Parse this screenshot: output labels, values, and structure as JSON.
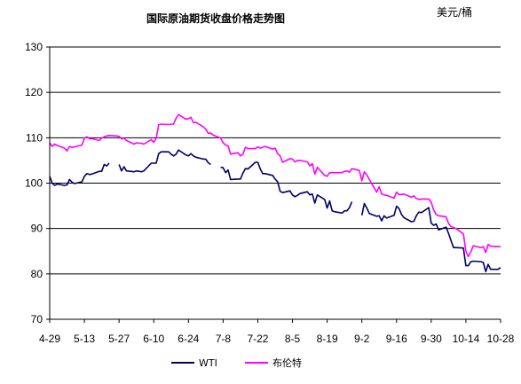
{
  "chart_data": {
    "type": "line",
    "title": "国际原油期货收盘价格走势图",
    "unit": "美元/桶",
    "xlabel": "",
    "ylabel": "",
    "ylim": [
      70,
      130
    ],
    "yticks": [
      70,
      80,
      90,
      100,
      110,
      120,
      130
    ],
    "xticks": [
      "4-29",
      "5-13",
      "5-27",
      "6-10",
      "6-24",
      "7-8",
      "7-22",
      "8-5",
      "8-19",
      "9-2",
      "9-16",
      "9-30",
      "10-14",
      "10-28"
    ],
    "grid": "horizontal",
    "legend": "bottom",
    "series": [
      {
        "name": "WTI",
        "color": "#000066",
        "points": [
          {
            "x": "4-29",
            "y": 101.5
          },
          {
            "x": "4-30",
            "y": 100.0
          },
          {
            "x": "5-1",
            "y": 99.5
          },
          {
            "x": "5-2",
            "y": 99.8
          },
          {
            "x": "5-5",
            "y": 99.5
          },
          {
            "x": "5-6",
            "y": 99.6
          },
          {
            "x": "5-7",
            "y": 100.8
          },
          {
            "x": "5-8",
            "y": 100.2
          },
          {
            "x": "5-9",
            "y": 99.9
          },
          {
            "x": "5-12",
            "y": 100.3
          },
          {
            "x": "5-13",
            "y": 101.5
          },
          {
            "x": "5-14",
            "y": 102.1
          },
          {
            "x": "5-15",
            "y": 101.9
          },
          {
            "x": "5-16",
            "y": 102.0
          },
          {
            "x": "5-19",
            "y": 102.6
          },
          {
            "x": "5-20",
            "y": 102.6
          },
          {
            "x": "5-21",
            "y": 104.1
          },
          {
            "x": "5-22",
            "y": 103.8
          },
          {
            "x": "5-23",
            "y": 104.4
          },
          {
            "x": "5-26",
            "y": null
          },
          {
            "x": "5-27",
            "y": 104.1
          },
          {
            "x": "5-28",
            "y": 102.7
          },
          {
            "x": "5-29",
            "y": 103.6
          },
          {
            "x": "5-30",
            "y": 102.7
          },
          {
            "x": "6-2",
            "y": 102.5
          },
          {
            "x": "6-3",
            "y": 102.7
          },
          {
            "x": "6-4",
            "y": 102.6
          },
          {
            "x": "6-5",
            "y": 102.5
          },
          {
            "x": "6-6",
            "y": 102.7
          },
          {
            "x": "6-9",
            "y": 104.4
          },
          {
            "x": "6-10",
            "y": 104.4
          },
          {
            "x": "6-11",
            "y": 104.4
          },
          {
            "x": "6-12",
            "y": 106.5
          },
          {
            "x": "6-13",
            "y": 106.9
          },
          {
            "x": "6-16",
            "y": 106.9
          },
          {
            "x": "6-17",
            "y": 106.4
          },
          {
            "x": "6-18",
            "y": 106.0
          },
          {
            "x": "6-19",
            "y": 106.4
          },
          {
            "x": "6-20",
            "y": 107.3
          },
          {
            "x": "6-23",
            "y": 106.2
          },
          {
            "x": "6-24",
            "y": 106.0
          },
          {
            "x": "6-25",
            "y": 106.5
          },
          {
            "x": "6-26",
            "y": 106.0
          },
          {
            "x": "6-27",
            "y": 105.7
          },
          {
            "x": "6-30",
            "y": 105.3
          },
          {
            "x": "7-1",
            "y": 105.3
          },
          {
            "x": "7-2",
            "y": 104.5
          },
          {
            "x": "7-3",
            "y": 104.1
          },
          {
            "x": "7-4",
            "y": null
          },
          {
            "x": "7-7",
            "y": 103.5
          },
          {
            "x": "7-8",
            "y": 103.4
          },
          {
            "x": "7-9",
            "y": 102.3
          },
          {
            "x": "7-10",
            "y": 102.9
          },
          {
            "x": "7-11",
            "y": 100.8
          },
          {
            "x": "7-14",
            "y": 100.9
          },
          {
            "x": "7-15",
            "y": 100.9
          },
          {
            "x": "7-16",
            "y": 102.2
          },
          {
            "x": "7-17",
            "y": 103.2
          },
          {
            "x": "7-18",
            "y": 103.1
          },
          {
            "x": "7-21",
            "y": 104.6
          },
          {
            "x": "7-22",
            "y": 104.6
          },
          {
            "x": "7-23",
            "y": 103.1
          },
          {
            "x": "7-24",
            "y": 102.1
          },
          {
            "x": "7-25",
            "y": 102.1
          },
          {
            "x": "7-28",
            "y": 101.7
          },
          {
            "x": "7-29",
            "y": 100.9
          },
          {
            "x": "7-30",
            "y": 100.3
          },
          {
            "x": "7-31",
            "y": 98.2
          },
          {
            "x": "8-1",
            "y": 97.9
          },
          {
            "x": "8-4",
            "y": 98.3
          },
          {
            "x": "8-5",
            "y": 97.4
          },
          {
            "x": "8-6",
            "y": 97.0
          },
          {
            "x": "8-7",
            "y": 97.3
          },
          {
            "x": "8-8",
            "y": 97.7
          },
          {
            "x": "8-11",
            "y": 98.1
          },
          {
            "x": "8-12",
            "y": 97.4
          },
          {
            "x": "8-13",
            "y": 97.6
          },
          {
            "x": "8-14",
            "y": 95.6
          },
          {
            "x": "8-15",
            "y": 97.4
          },
          {
            "x": "8-18",
            "y": 96.4
          },
          {
            "x": "8-19",
            "y": 94.5
          },
          {
            "x": "8-20",
            "y": 96.1
          },
          {
            "x": "8-21",
            "y": 93.9
          },
          {
            "x": "8-22",
            "y": 93.7
          },
          {
            "x": "8-25",
            "y": 93.4
          },
          {
            "x": "8-26",
            "y": 93.9
          },
          {
            "x": "8-27",
            "y": 93.9
          },
          {
            "x": "8-28",
            "y": 94.6
          },
          {
            "x": "8-29",
            "y": 95.9
          },
          {
            "x": "9-1",
            "y": null
          },
          {
            "x": "9-2",
            "y": 92.9
          },
          {
            "x": "9-3",
            "y": 95.5
          },
          {
            "x": "9-4",
            "y": 94.5
          },
          {
            "x": "9-5",
            "y": 93.3
          },
          {
            "x": "9-8",
            "y": 92.7
          },
          {
            "x": "9-9",
            "y": 92.8
          },
          {
            "x": "9-10",
            "y": 91.7
          },
          {
            "x": "9-11",
            "y": 92.8
          },
          {
            "x": "9-12",
            "y": 92.3
          },
          {
            "x": "9-15",
            "y": 92.9
          },
          {
            "x": "9-16",
            "y": 94.9
          },
          {
            "x": "9-17",
            "y": 94.4
          },
          {
            "x": "9-18",
            "y": 93.1
          },
          {
            "x": "9-19",
            "y": 92.4
          },
          {
            "x": "9-22",
            "y": 91.5
          },
          {
            "x": "9-23",
            "y": 91.6
          },
          {
            "x": "9-24",
            "y": 92.8
          },
          {
            "x": "9-25",
            "y": 93.6
          },
          {
            "x": "9-26",
            "y": 93.5
          },
          {
            "x": "9-29",
            "y": 94.6
          },
          {
            "x": "9-30",
            "y": 91.2
          },
          {
            "x": "10-1",
            "y": 90.7
          },
          {
            "x": "10-2",
            "y": 91.0
          },
          {
            "x": "10-3",
            "y": 89.7
          },
          {
            "x": "10-6",
            "y": 90.3
          },
          {
            "x": "10-7",
            "y": 88.9
          },
          {
            "x": "10-8",
            "y": 87.3
          },
          {
            "x": "10-9",
            "y": 85.8
          },
          {
            "x": "10-10",
            "y": 85.8
          },
          {
            "x": "10-13",
            "y": 85.7
          },
          {
            "x": "10-14",
            "y": 81.8
          },
          {
            "x": "10-15",
            "y": 81.8
          },
          {
            "x": "10-16",
            "y": 82.7
          },
          {
            "x": "10-17",
            "y": 82.8
          },
          {
            "x": "10-20",
            "y": 82.7
          },
          {
            "x": "10-21",
            "y": 82.5
          },
          {
            "x": "10-22",
            "y": 80.5
          },
          {
            "x": "10-23",
            "y": 82.1
          },
          {
            "x": "10-24",
            "y": 81.0
          },
          {
            "x": "10-27",
            "y": 81.0
          },
          {
            "x": "10-28",
            "y": 81.4
          }
        ]
      },
      {
        "name": "布伦特",
        "color": "#ff00ff",
        "points": [
          {
            "x": "4-29",
            "y": 108.9
          },
          {
            "x": "4-30",
            "y": 108.1
          },
          {
            "x": "5-1",
            "y": 108.6
          },
          {
            "x": "5-2",
            "y": 108.3
          },
          {
            "x": "5-5",
            "y": 107.7
          },
          {
            "x": "5-6",
            "y": 107.1
          },
          {
            "x": "5-7",
            "y": 108.1
          },
          {
            "x": "5-8",
            "y": 107.9
          },
          {
            "x": "5-9",
            "y": 108.0
          },
          {
            "x": "5-12",
            "y": 108.4
          },
          {
            "x": "5-13",
            "y": 109.9
          },
          {
            "x": "5-14",
            "y": 110.2
          },
          {
            "x": "5-15",
            "y": 109.8
          },
          {
            "x": "5-16",
            "y": 109.8
          },
          {
            "x": "5-19",
            "y": 109.4
          },
          {
            "x": "5-20",
            "y": 109.9
          },
          {
            "x": "5-21",
            "y": 110.2
          },
          {
            "x": "5-22",
            "y": 110.4
          },
          {
            "x": "5-23",
            "y": 110.5
          },
          {
            "x": "5-26",
            "y": 110.4
          },
          {
            "x": "5-27",
            "y": 110.3
          },
          {
            "x": "5-28",
            "y": 109.8
          },
          {
            "x": "5-29",
            "y": 109.9
          },
          {
            "x": "5-30",
            "y": 109.4
          },
          {
            "x": "6-2",
            "y": 108.6
          },
          {
            "x": "6-3",
            "y": 108.9
          },
          {
            "x": "6-4",
            "y": 108.8
          },
          {
            "x": "6-5",
            "y": 108.8
          },
          {
            "x": "6-6",
            "y": 108.6
          },
          {
            "x": "6-9",
            "y": 109.6
          },
          {
            "x": "6-10",
            "y": 109.0
          },
          {
            "x": "6-11",
            "y": 109.9
          },
          {
            "x": "6-12",
            "y": 112.9
          },
          {
            "x": "6-13",
            "y": 113.0
          },
          {
            "x": "6-16",
            "y": 112.9
          },
          {
            "x": "6-17",
            "y": 113.0
          },
          {
            "x": "6-18",
            "y": 113.0
          },
          {
            "x": "6-19",
            "y": 114.3
          },
          {
            "x": "6-20",
            "y": 115.1
          },
          {
            "x": "6-23",
            "y": 114.1
          },
          {
            "x": "6-24",
            "y": 114.2
          },
          {
            "x": "6-25",
            "y": 114.5
          },
          {
            "x": "6-26",
            "y": 113.3
          },
          {
            "x": "6-27",
            "y": 113.4
          },
          {
            "x": "6-30",
            "y": 112.4
          },
          {
            "x": "7-1",
            "y": 111.9
          },
          {
            "x": "7-2",
            "y": 111.0
          },
          {
            "x": "7-3",
            "y": 111.0
          },
          {
            "x": "7-4",
            "y": 110.6
          },
          {
            "x": "7-7",
            "y": 109.9
          },
          {
            "x": "7-8",
            "y": 108.9
          },
          {
            "x": "7-9",
            "y": 108.4
          },
          {
            "x": "7-10",
            "y": 108.2
          },
          {
            "x": "7-11",
            "y": 106.4
          },
          {
            "x": "7-14",
            "y": 106.7
          },
          {
            "x": "7-15",
            "y": 106.0
          },
          {
            "x": "7-16",
            "y": 106.4
          },
          {
            "x": "7-17",
            "y": 107.9
          },
          {
            "x": "7-18",
            "y": 107.6
          },
          {
            "x": "7-21",
            "y": 107.6
          },
          {
            "x": "7-22",
            "y": 108.0
          },
          {
            "x": "7-23",
            "y": 107.7
          },
          {
            "x": "7-24",
            "y": 107.9
          },
          {
            "x": "7-25",
            "y": 108.1
          },
          {
            "x": "7-28",
            "y": 107.5
          },
          {
            "x": "7-29",
            "y": 107.7
          },
          {
            "x": "7-30",
            "y": 106.5
          },
          {
            "x": "7-31",
            "y": 106.0
          },
          {
            "x": "8-1",
            "y": 104.6
          },
          {
            "x": "8-4",
            "y": 105.4
          },
          {
            "x": "8-5",
            "y": 105.3
          },
          {
            "x": "8-6",
            "y": 104.7
          },
          {
            "x": "8-7",
            "y": 105.0
          },
          {
            "x": "8-8",
            "y": 105.0
          },
          {
            "x": "8-11",
            "y": 104.7
          },
          {
            "x": "8-12",
            "y": 103.8
          },
          {
            "x": "8-13",
            "y": 104.3
          },
          {
            "x": "8-14",
            "y": 102.0
          },
          {
            "x": "8-15",
            "y": 103.5
          },
          {
            "x": "8-18",
            "y": 101.7
          },
          {
            "x": "8-19",
            "y": 101.5
          },
          {
            "x": "8-20",
            "y": 102.3
          },
          {
            "x": "8-21",
            "y": 102.3
          },
          {
            "x": "8-22",
            "y": 102.3
          },
          {
            "x": "8-25",
            "y": 102.3
          },
          {
            "x": "8-26",
            "y": 102.6
          },
          {
            "x": "8-27",
            "y": 102.7
          },
          {
            "x": "8-28",
            "y": 102.4
          },
          {
            "x": "8-29",
            "y": 103.2
          },
          {
            "x": "9-1",
            "y": 102.8
          },
          {
            "x": "9-2",
            "y": 100.5
          },
          {
            "x": "9-3",
            "y": 102.5
          },
          {
            "x": "9-4",
            "y": 101.8
          },
          {
            "x": "9-5",
            "y": 100.8
          },
          {
            "x": "9-8",
            "y": 98.0
          },
          {
            "x": "9-9",
            "y": 99.2
          },
          {
            "x": "9-10",
            "y": 97.6
          },
          {
            "x": "9-11",
            "y": 97.4
          },
          {
            "x": "9-12",
            "y": 97.3
          },
          {
            "x": "9-15",
            "y": 96.7
          },
          {
            "x": "9-16",
            "y": 98.0
          },
          {
            "x": "9-17",
            "y": 97.5
          },
          {
            "x": "9-18",
            "y": 97.5
          },
          {
            "x": "9-19",
            "y": 97.6
          },
          {
            "x": "9-22",
            "y": 96.9
          },
          {
            "x": "9-23",
            "y": 97.2
          },
          {
            "x": "9-24",
            "y": 96.6
          },
          {
            "x": "9-25",
            "y": 96.4
          },
          {
            "x": "9-26",
            "y": 96.5
          },
          {
            "x": "9-29",
            "y": 96.5
          },
          {
            "x": "9-30",
            "y": 95.8
          },
          {
            "x": "10-1",
            "y": 94.1
          },
          {
            "x": "10-2",
            "y": 93.1
          },
          {
            "x": "10-3",
            "y": 92.8
          },
          {
            "x": "10-6",
            "y": 92.6
          },
          {
            "x": "10-7",
            "y": 91.1
          },
          {
            "x": "10-8",
            "y": 90.4
          },
          {
            "x": "10-9",
            "y": 90.2
          },
          {
            "x": "10-10",
            "y": 90.0
          },
          {
            "x": "10-13",
            "y": 88.8
          },
          {
            "x": "10-14",
            "y": 85.0
          },
          {
            "x": "10-15",
            "y": 83.8
          },
          {
            "x": "10-16",
            "y": 84.9
          },
          {
            "x": "10-17",
            "y": 86.2
          },
          {
            "x": "10-20",
            "y": 85.8
          },
          {
            "x": "10-21",
            "y": 86.0
          },
          {
            "x": "10-22",
            "y": 84.7
          },
          {
            "x": "10-23",
            "y": 86.5
          },
          {
            "x": "10-24",
            "y": 86.1
          },
          {
            "x": "10-27",
            "y": 86.0
          },
          {
            "x": "10-28",
            "y": 86.0
          }
        ]
      }
    ]
  }
}
